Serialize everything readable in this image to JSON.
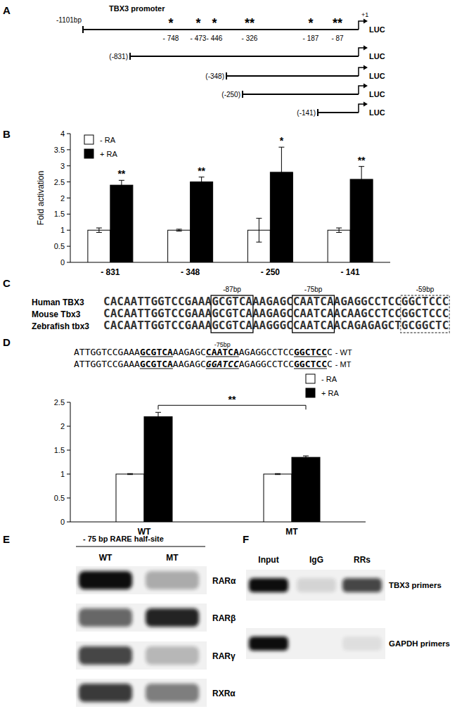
{
  "chart_data": [
    {
      "type": "bar",
      "ylabel": "Fold activation",
      "categories": [
        "- 831",
        "- 348",
        "- 250",
        "- 141"
      ],
      "series": [
        {
          "name": "- RA",
          "color": "#ffffff",
          "values": [
            1,
            1,
            1,
            1
          ],
          "errors": [
            0.07,
            0.03,
            0.37,
            0.07
          ]
        },
        {
          "name": "+ RA",
          "color": "#000000",
          "values": [
            2.4,
            2.5,
            2.8,
            2.58
          ],
          "errors": [
            0.15,
            0.15,
            0.78,
            0.4
          ]
        }
      ],
      "ylim": [
        0,
        4
      ],
      "yticks": [
        0,
        0.5,
        1,
        1.5,
        2,
        2.5,
        3,
        3.5,
        4
      ],
      "annotations": [
        "**",
        "**",
        "*",
        "**"
      ],
      "legend": "top-left"
    },
    {
      "type": "bar",
      "categories": [
        "WT",
        "MT"
      ],
      "series": [
        {
          "name": "- RA",
          "color": "#ffffff",
          "values": [
            1,
            1
          ],
          "errors": [
            0.01,
            0.01
          ]
        },
        {
          "name": "+ RA",
          "color": "#000000",
          "values": [
            2.2,
            1.35
          ],
          "errors": [
            0.09,
            0.03
          ]
        }
      ],
      "ylim": [
        0,
        2.5
      ],
      "yticks": [
        0,
        0.5,
        1,
        1.5,
        2,
        2.5
      ],
      "annotations": [
        "**"
      ],
      "legend": "top-right"
    }
  ],
  "panel_labels": [
    "A",
    "B",
    "C",
    "D",
    "E",
    "F"
  ],
  "panel_a": {
    "title": "TBX3 promoter",
    "start": "-1101bp",
    "tss": "+1",
    "reporter": "LUC",
    "sites": [
      {
        "mark": "*",
        "label": "- 748"
      },
      {
        "mark": "*",
        "label": "- 473"
      },
      {
        "mark": "*",
        "label": "- 446"
      },
      {
        "mark": "**",
        "label": "- 326"
      },
      {
        "mark": "*",
        "label": "- 187"
      },
      {
        "mark": "**",
        "label": "- 87"
      }
    ],
    "constructs": [
      "(-831)",
      "(-348)",
      "(-250)",
      "(-141)"
    ]
  },
  "panel_c": {
    "motif_labels": [
      "-87bp",
      "-75bp",
      "-59bp"
    ],
    "rows": [
      {
        "species": "Human TBX3",
        "sequence": "CACAATTGGTCCGAAAGCGTCAAAGAGCCAATCAAGAGGCCTCCGGCTCCC"
      },
      {
        "species": "Mouse Tbx3",
        "sequence": "CACAATTGGTCCGAAAGCGTCAAAGAGCCAATCAACAAGCCTCCGGCTCCC"
      },
      {
        "species": "Zebrafish tbx3",
        "sequence": "CACAATTGGTCCGAAAGCGTCAAAGGGCCAATCAACAGAGAGCTGCGGCTC"
      }
    ]
  },
  "panel_d": {
    "site_label": "-75bp",
    "rows": [
      {
        "label": "- WT",
        "segments": [
          {
            "text": "ATTGGTCCGAAA",
            "style": "plain"
          },
          {
            "text": "GCGTCA",
            "style": "bold-underline"
          },
          {
            "text": "AAGAGC",
            "style": "plain"
          },
          {
            "text": "CAATCA",
            "style": "bold-underline"
          },
          {
            "text": "AGAGGCCTCC",
            "style": "plain"
          },
          {
            "text": "GGCTCC",
            "style": "bold-underline"
          },
          {
            "text": "C",
            "style": "plain"
          }
        ]
      },
      {
        "label": "- MT",
        "segments": [
          {
            "text": "ATTGGTCCGAAA",
            "style": "plain"
          },
          {
            "text": "GCGTCA",
            "style": "bold-underline"
          },
          {
            "text": "AAGAGC",
            "style": "plain"
          },
          {
            "text": "GGATCC",
            "style": "bold-italic-underline"
          },
          {
            "text": "AGAGGCCTCC",
            "style": "plain"
          },
          {
            "text": "GGCTCC",
            "style": "bold-underline"
          },
          {
            "text": "C",
            "style": "plain"
          }
        ]
      }
    ]
  },
  "panel_e": {
    "header": "- 75 bp RARE half-site",
    "lanes": [
      "WT",
      "MT"
    ],
    "rows": [
      {
        "protein": "RARα",
        "intensities": [
          1,
          0.3
        ]
      },
      {
        "protein": "RARβ",
        "intensities": [
          0.6,
          0.9
        ]
      },
      {
        "protein": "RARγ",
        "intensities": [
          0.75,
          0.25
        ]
      },
      {
        "protein": "RXRα",
        "intensities": [
          0.8,
          0.5
        ]
      }
    ]
  },
  "panel_f": {
    "lanes": [
      "Input",
      "IgG",
      "RRs"
    ],
    "rows": [
      {
        "primers": "TBX3 primers",
        "intensities": [
          1,
          0.12,
          0.75
        ]
      },
      {
        "primers": "GAPDH primers",
        "intensities": [
          1,
          0,
          0.08
        ]
      }
    ]
  }
}
